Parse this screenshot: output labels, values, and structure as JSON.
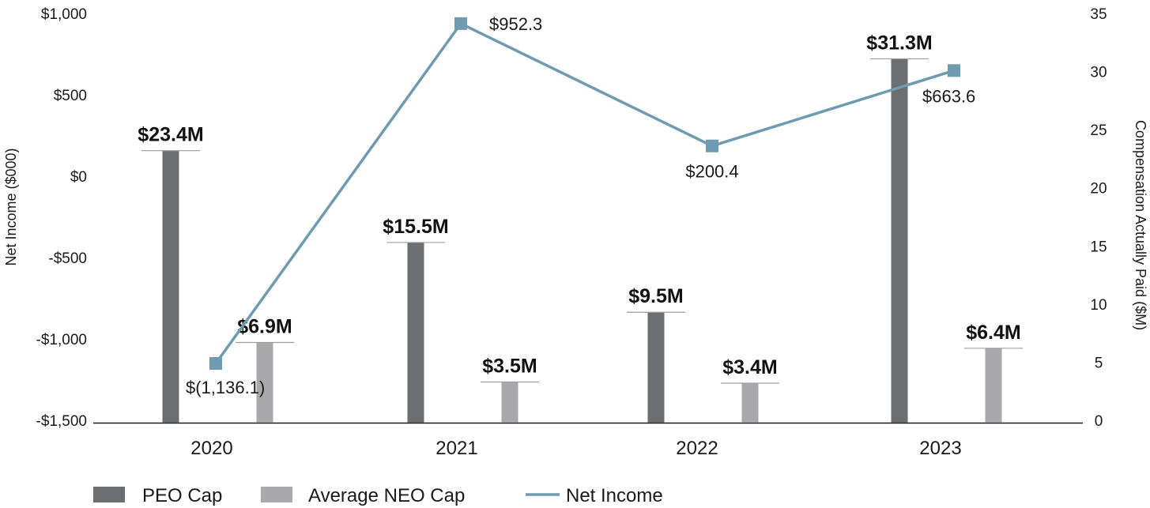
{
  "chart_data": {
    "type": "bar",
    "categories": [
      "2020",
      "2021",
      "2022",
      "2023"
    ],
    "series": [
      {
        "name": "PEO Cap",
        "kind": "bar",
        "axis": "right",
        "color": "#6d6e71",
        "values": [
          23.4,
          15.5,
          9.5,
          31.3
        ],
        "labels": [
          "$23.4M",
          "$15.5M",
          "$9.5M",
          "$31.3M"
        ]
      },
      {
        "name": "Average NEO Cap",
        "kind": "bar",
        "axis": "right",
        "color": "#a9a9ab",
        "values": [
          6.9,
          3.5,
          3.4,
          6.4
        ],
        "labels": [
          "$6.9M",
          "$3.5M",
          "$3.4M",
          "$6.4M"
        ]
      },
      {
        "name": "Net Income",
        "kind": "line",
        "axis": "left",
        "color": "#6e9bb1",
        "values": [
          -1136.1,
          952.3,
          200.4,
          663.6
        ],
        "labels": [
          "$(1,136.1)",
          "$952.3",
          "$200.4",
          "$663.6"
        ]
      }
    ],
    "left_axis": {
      "label": "Net Income ($000)",
      "range": [
        -1500,
        1000
      ],
      "ticks": [
        1000,
        500,
        0,
        -500,
        -1000,
        -1500
      ],
      "tick_labels": [
        "$1,000",
        "$500",
        "$0",
        "-$500",
        "-$1,000",
        "-$1,500"
      ]
    },
    "right_axis": {
      "label": "Compensation Actually Paid ($M)",
      "range": [
        0,
        35
      ],
      "ticks": [
        35,
        30,
        25,
        20,
        15,
        10,
        5,
        0
      ],
      "tick_labels": [
        "35",
        "30",
        "25",
        "20",
        "15",
        "10",
        "5",
        "0"
      ]
    },
    "legend": {
      "position": "bottom-left",
      "entries": [
        "PEO Cap",
        "Average NEO Cap",
        "Net Income"
      ]
    },
    "grid": false
  }
}
